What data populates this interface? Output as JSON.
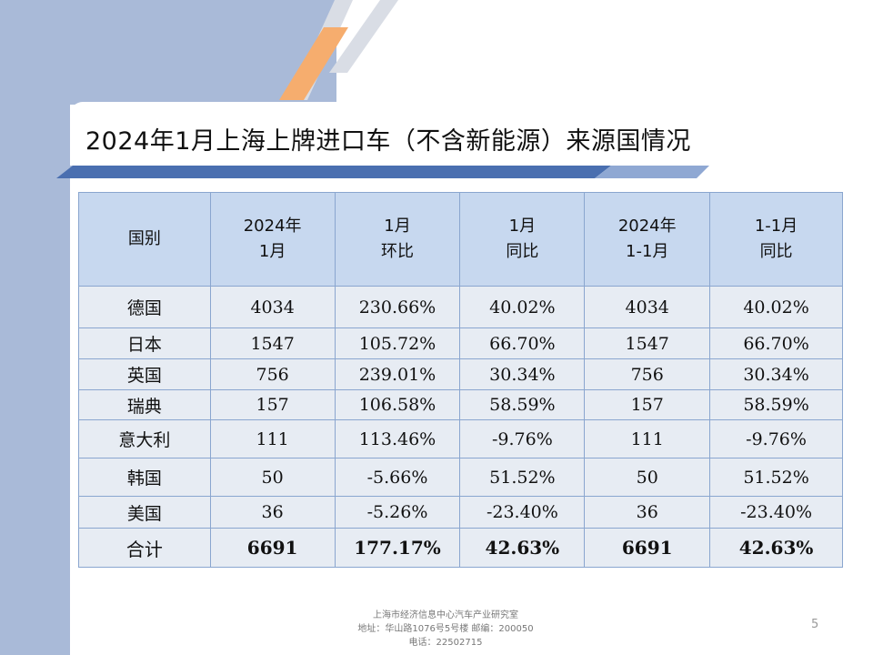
{
  "slide": {
    "title": "2024年1月上海上牌进口车（不含新能源）来源国情况",
    "page_number": "5"
  },
  "table": {
    "headers": [
      [
        "国别"
      ],
      [
        "2024年",
        "1月"
      ],
      [
        "1月",
        "环比"
      ],
      [
        "1月",
        "同比"
      ],
      [
        "2024年",
        "1-1月"
      ],
      [
        "1-1月",
        "同比"
      ]
    ],
    "rows": [
      [
        "德国",
        "4034",
        "230.66%",
        "40.02%",
        "4034",
        "40.02%"
      ],
      [
        "日本",
        "1547",
        "105.72%",
        "66.70%",
        "1547",
        "66.70%"
      ],
      [
        "英国",
        "756",
        "239.01%",
        "30.34%",
        "756",
        "30.34%"
      ],
      [
        "瑞典",
        "157",
        "106.58%",
        "58.59%",
        "157",
        "58.59%"
      ],
      [
        "意大利",
        "111",
        "113.46%",
        "-9.76%",
        "111",
        "-9.76%"
      ],
      [
        "韩国",
        "50",
        "-5.66%",
        "51.52%",
        "50",
        "51.52%"
      ],
      [
        "美国",
        "36",
        "-5.26%",
        "-23.40%",
        "36",
        "-23.40%"
      ]
    ],
    "total": [
      "合计",
      "6691",
      "177.17%",
      "42.63%",
      "6691",
      "42.63%"
    ]
  },
  "footer": {
    "line1": "上海市经济信息中心汽车产业研究室",
    "line2": "地址：华山路1076号5号楼   邮编：200050",
    "line3": "电话：22502715"
  },
  "colors": {
    "band": "#a9bad8",
    "accent_orange": "#f6ad6e",
    "title_bar": "#4a6fb0",
    "header_fill": "#c7d8ef",
    "row_fill": "#e7ecf3"
  }
}
